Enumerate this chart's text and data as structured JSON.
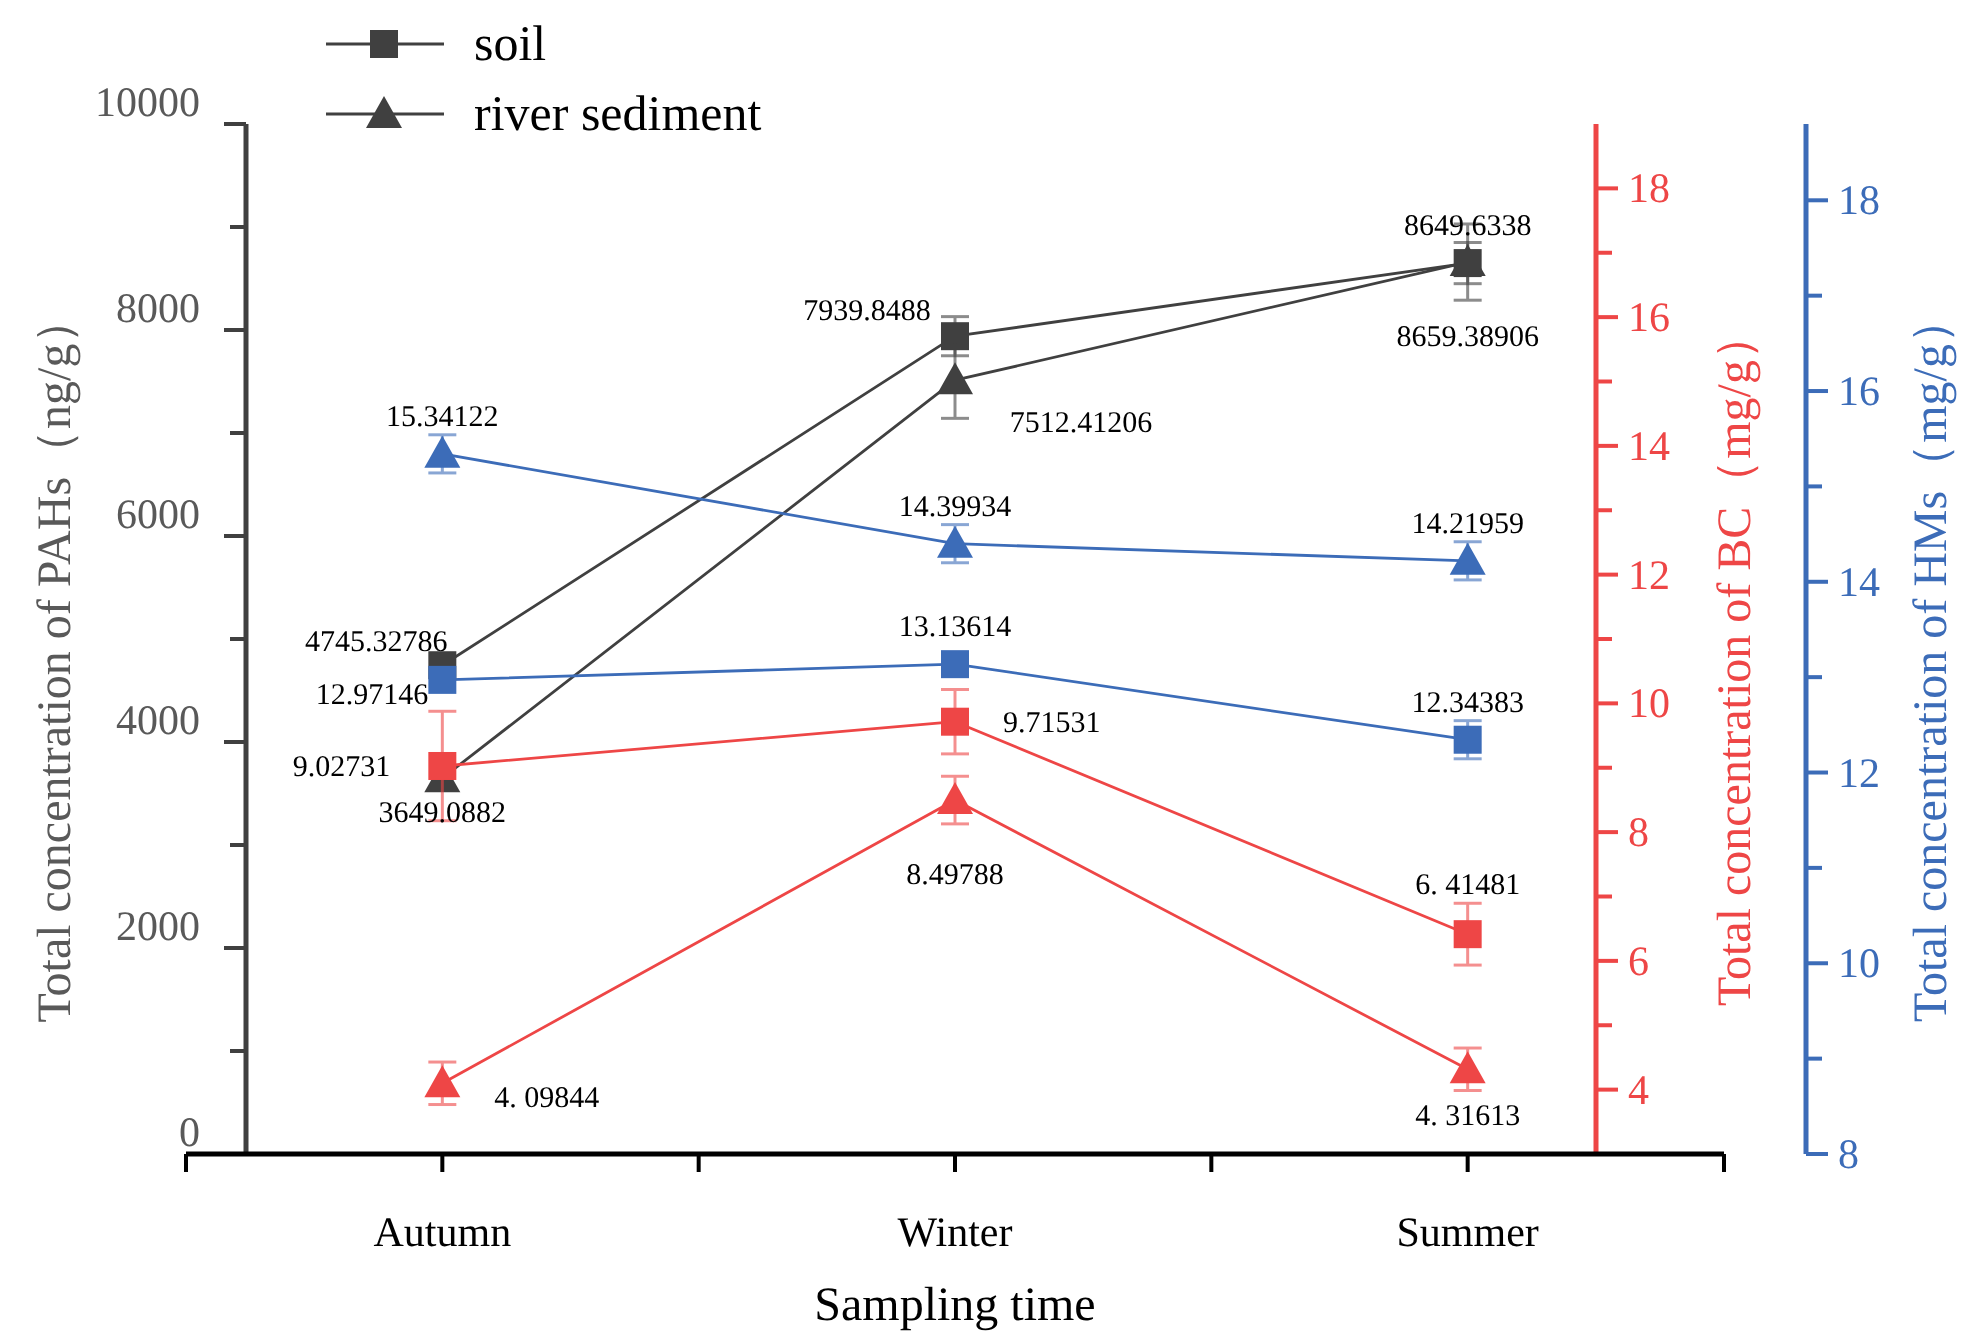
{
  "chart_data": {
    "type": "line",
    "categories": [
      "Autumn",
      "Winter",
      "Summer"
    ],
    "xlabel": "Sampling time",
    "ylabel": "Total concentration of PAHs（ng/g）",
    "y2label": "Total concentration of BC（mg/g）",
    "y3label": "Total concentration of HMs（mg/g）",
    "ylim": [
      0,
      10000
    ],
    "yticks": [
      0,
      2000,
      4000,
      6000,
      8000,
      10000
    ],
    "y2lim": [
      3,
      19
    ],
    "y2ticks": [
      4,
      6,
      8,
      10,
      12,
      14,
      16,
      18
    ],
    "y3lim": [
      8,
      18.8
    ],
    "y3ticks": [
      8,
      10,
      12,
      14,
      16,
      18
    ],
    "legend": "top left",
    "series": [
      {
        "name": "soil",
        "color": "#404040",
        "axis": "y",
        "marker": "square",
        "values": [
          4745.32786,
          7939.8488,
          8649.6338
        ],
        "errors": [
          null,
          190,
          200
        ],
        "value_labels": [
          "4745.32786",
          "7939.8488",
          "8649.6338"
        ]
      },
      {
        "name": "river sediment",
        "color": "#404040",
        "axis": "y",
        "marker": "triangle",
        "values": [
          3649.0882,
          7512.41206,
          8659.38906
        ],
        "errors": [
          null,
          370,
          370
        ],
        "value_labels": [
          "3649.0882",
          "7512.41206",
          "8659.38906"
        ]
      },
      {
        "color": "#3c6cb8",
        "axis": "y3",
        "marker": "square",
        "values": [
          12.97146,
          13.13614,
          12.34383
        ],
        "errors": [
          null,
          null,
          0.2
        ],
        "value_labels": [
          "12.97146",
          "13.13614",
          "12.34383"
        ]
      },
      {
        "color": "#3c6cb8",
        "axis": "y3",
        "marker": "triangle",
        "values": [
          15.34122,
          14.39934,
          14.21959
        ],
        "errors": [
          0.2,
          0.2,
          0.2
        ],
        "value_labels": [
          "15.34122",
          "14.39934",
          "14.21959"
        ]
      },
      {
        "color": "#ee4646",
        "axis": "y2",
        "marker": "square",
        "values": [
          9.02731,
          9.71531,
          6.41481
        ],
        "errors": [
          0.85,
          0.5,
          0.48
        ],
        "value_labels": [
          "9.02731",
          "9.71531",
          "6. 41481"
        ]
      },
      {
        "color": "#ee4646",
        "axis": "y2",
        "marker": "triangle",
        "values": [
          4.09844,
          8.49788,
          4.31613
        ],
        "errors": [
          0.33,
          0.37,
          0.33
        ],
        "value_labels": [
          "4. 09844",
          "8.49788",
          "4. 31613"
        ]
      }
    ]
  }
}
